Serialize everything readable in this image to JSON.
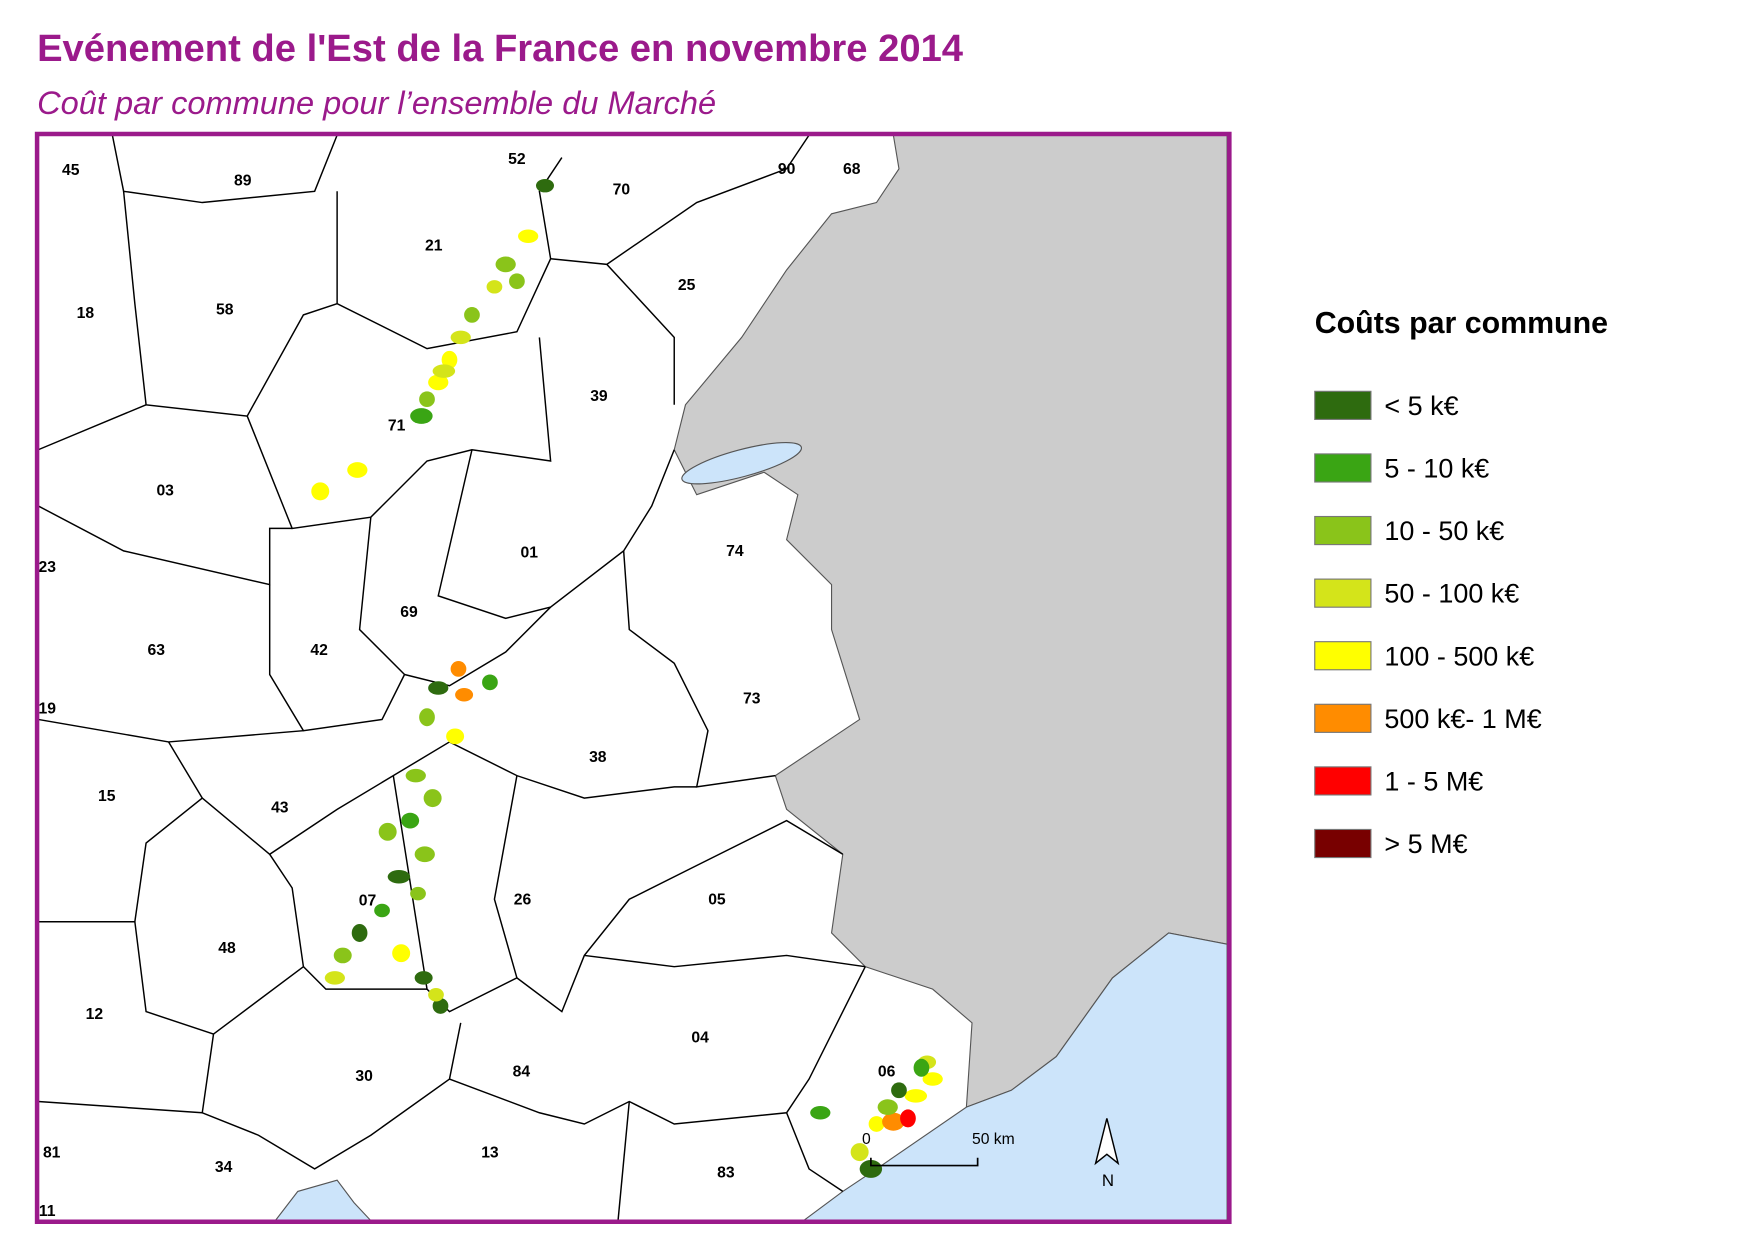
{
  "header": {
    "title": "Evénement de l'Est de la France en novembre 2014",
    "subtitle": "Coût par commune pour l’ensemble du Marché"
  },
  "map": {
    "departments": [
      "45",
      "89",
      "52",
      "70",
      "90",
      "68",
      "21",
      "25",
      "18",
      "58",
      "39",
      "71",
      "03",
      "01",
      "74",
      "23",
      "69",
      "63",
      "42",
      "73",
      "19",
      "38",
      "15",
      "43",
      "07",
      "26",
      "05",
      "48",
      "12",
      "04",
      "06",
      "30",
      "84",
      "81",
      "13",
      "34",
      "83",
      "11"
    ],
    "scale": {
      "start": "0",
      "end": "50 km"
    },
    "north": "N"
  },
  "legend": {
    "title": "Coûts par commune",
    "items": [
      {
        "label": "< 5 k€",
        "color": "#2e6b0f"
      },
      {
        "label": "5 - 10 k€",
        "color": "#3aa514"
      },
      {
        "label": "10 - 50 k€",
        "color": "#8ac41a"
      },
      {
        "label": "50 - 100 k€",
        "color": "#d4e41a"
      },
      {
        "label": "100 - 500 k€",
        "color": "#ffff00"
      },
      {
        "label": "500 k€- 1 M€",
        "color": "#ff8c00"
      },
      {
        "label": "1 - 5 M€",
        "color": "#ff0000"
      },
      {
        "label": "> 5 M€",
        "color": "#780000"
      }
    ]
  }
}
